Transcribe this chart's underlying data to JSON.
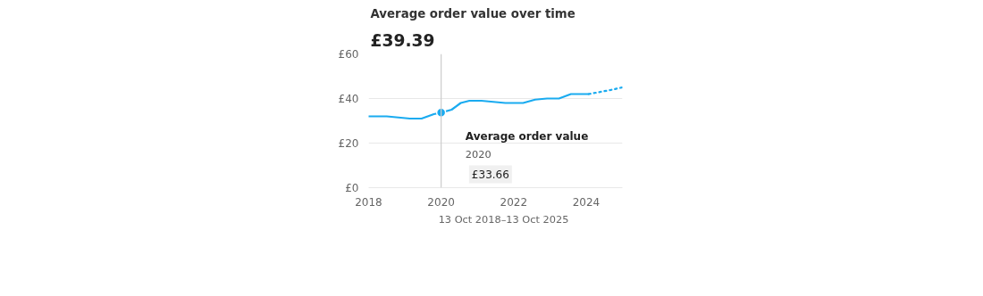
{
  "chart_data": {
    "type": "line",
    "title": "Average order value over time",
    "subtitle": "£39.39",
    "xlim": [
      2018,
      2025
    ],
    "ylim": [
      0,
      60
    ],
    "xticks": [
      2018,
      2020,
      2022,
      2024
    ],
    "yticks": [
      {
        "value": 0,
        "label": "£0"
      },
      {
        "value": 20,
        "label": "£20"
      },
      {
        "value": 40,
        "label": "£40"
      },
      {
        "value": 60,
        "label": "£60"
      }
    ],
    "grid": "y",
    "legend": "bottom",
    "marker": "none",
    "line_style": "solid",
    "series": [
      {
        "name": "13 Oct 2018–13 Oct 2025",
        "color": "#1aabf0",
        "x": [
          2018.0,
          2018.5,
          2019.14,
          2019.46,
          2019.8,
          2020.0,
          2020.29,
          2020.54,
          2020.78,
          2021.11,
          2021.44,
          2021.77,
          2022.26,
          2022.59,
          2022.92,
          2023.25,
          2023.58,
          2023.91,
          2024.07
        ],
        "values": [
          32,
          32,
          31,
          31,
          33,
          33.66,
          35,
          38,
          39,
          39,
          38.5,
          38,
          38,
          39.5,
          40,
          40,
          42,
          42,
          42
        ]
      },
      {
        "color": "#1aabf0",
        "line_style": "dotted",
        "x": [
          2024.07,
          2024.4,
          2024.73,
          2025.0
        ],
        "values": [
          42,
          43,
          44,
          45
        ]
      },
      {
        "type": "scatter",
        "marker": "circle",
        "color": "#1aabf0",
        "x": [
          2020
        ],
        "values": [
          33.66
        ]
      }
    ],
    "ref_lines": [
      {
        "axis": "x",
        "value": 2020,
        "color": "#cccccc"
      }
    ],
    "annotations": [
      "Average order value",
      "2020",
      "£33.66"
    ]
  }
}
